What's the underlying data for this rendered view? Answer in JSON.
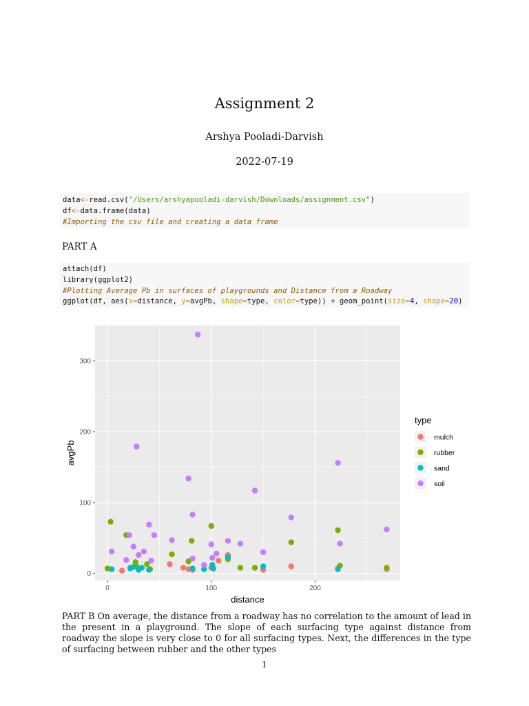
{
  "document": {
    "title": "Assignment 2",
    "author": "Arshya Pooladi-Darvish",
    "date": "2022-07-19",
    "part_a": "PART A",
    "paragraph": "PART B On average, the distance from a roadway has no correlation to the amount of lead in the present in a playground. The slope of each surfacing type against distance from roadway the slope is very close to 0 for all surfacing types. Next, the differences in the type of surfacing between rubber and the other types",
    "page_number": "1"
  },
  "code_block_1": [
    [
      {
        "t": "data",
        "c": ""
      },
      {
        "t": "<-",
        "c": "op"
      },
      {
        "t": "read.csv(",
        "c": ""
      },
      {
        "t": "\"/Users/arshyapooladi-darvish/Downloads/assignment.csv\"",
        "c": "str"
      },
      {
        "t": ")",
        "c": ""
      }
    ],
    [
      {
        "t": "df",
        "c": ""
      },
      {
        "t": "<-",
        "c": "op"
      },
      {
        "t": "data.frame(data)",
        "c": ""
      }
    ],
    [
      {
        "t": "#Importing the csv file and creating a data frame",
        "c": "cmt"
      }
    ]
  ],
  "code_block_2": [
    [
      {
        "t": "attach(df)",
        "c": ""
      }
    ],
    [
      {
        "t": "library(ggplot2)",
        "c": ""
      }
    ],
    [
      {
        "t": "#Plotting Average Pb in surfaces of playgrounds and Distance from a Roadway",
        "c": "cmt"
      }
    ],
    [
      {
        "t": "ggplot(df, aes(",
        "c": ""
      },
      {
        "t": "x=",
        "c": "arg"
      },
      {
        "t": "distance, ",
        "c": ""
      },
      {
        "t": "y=",
        "c": "arg"
      },
      {
        "t": "avgPb, ",
        "c": ""
      },
      {
        "t": "shape=",
        "c": "arg"
      },
      {
        "t": "type, ",
        "c": ""
      },
      {
        "t": "color=",
        "c": "arg"
      },
      {
        "t": "type)) + geom_point(",
        "c": ""
      },
      {
        "t": "size=",
        "c": "arg"
      },
      {
        "t": "4",
        "c": "num"
      },
      {
        "t": ", ",
        "c": ""
      },
      {
        "t": "shape=",
        "c": "arg"
      },
      {
        "t": "20",
        "c": "num"
      },
      {
        "t": ")",
        "c": ""
      }
    ]
  ],
  "chart_data": {
    "type": "scatter",
    "xlabel": "distance",
    "ylabel": "avgPb",
    "xlim": [
      -12,
      282
    ],
    "ylim": [
      -10,
      350
    ],
    "x_ticks": [
      0,
      100,
      200
    ],
    "y_ticks": [
      0,
      100,
      200,
      300
    ],
    "grid": true,
    "legend": {
      "title": "type",
      "placement": "right"
    },
    "series": [
      {
        "name": "mulch",
        "color": "#F8766D",
        "points": [
          [
            14,
            4
          ],
          [
            60,
            13
          ],
          [
            73,
            8
          ],
          [
            78,
            6
          ],
          [
            82,
            5
          ],
          [
            100,
            8
          ],
          [
            107,
            18
          ],
          [
            116,
            26
          ],
          [
            150,
            5
          ],
          [
            177,
            10
          ],
          [
            222,
            7
          ],
          [
            269,
            6
          ]
        ]
      },
      {
        "name": "rubber",
        "color": "#7CAE00",
        "points": [
          [
            0,
            7
          ],
          [
            3,
            73
          ],
          [
            18,
            54
          ],
          [
            22,
            8
          ],
          [
            27,
            16
          ],
          [
            28,
            10
          ],
          [
            38,
            13
          ],
          [
            41,
            6
          ],
          [
            62,
            27
          ],
          [
            78,
            17
          ],
          [
            81,
            46
          ],
          [
            100,
            67
          ],
          [
            116,
            20
          ],
          [
            128,
            8
          ],
          [
            142,
            8
          ],
          [
            177,
            44
          ],
          [
            222,
            61
          ],
          [
            224,
            11
          ],
          [
            269,
            8
          ]
        ]
      },
      {
        "name": "sand",
        "color": "#00BFC4",
        "points": [
          [
            4,
            6
          ],
          [
            22,
            7
          ],
          [
            25,
            9
          ],
          [
            30,
            5
          ],
          [
            33,
            8
          ],
          [
            40,
            5
          ],
          [
            82,
            7
          ],
          [
            93,
            6
          ],
          [
            101,
            12
          ],
          [
            102,
            7
          ],
          [
            116,
            23
          ],
          [
            150,
            10
          ],
          [
            222,
            6
          ]
        ]
      },
      {
        "name": "soil",
        "color": "#C77CFF",
        "points": [
          [
            4,
            31
          ],
          [
            18,
            19
          ],
          [
            21,
            54
          ],
          [
            25,
            38
          ],
          [
            30,
            26
          ],
          [
            35,
            31
          ],
          [
            40,
            69
          ],
          [
            42,
            18
          ],
          [
            45,
            54
          ],
          [
            62,
            47
          ],
          [
            78,
            134
          ],
          [
            82,
            83
          ],
          [
            82,
            21
          ],
          [
            87,
            337
          ],
          [
            93,
            12
          ],
          [
            100,
            41
          ],
          [
            101,
            22
          ],
          [
            105,
            28
          ],
          [
            116,
            46
          ],
          [
            128,
            42
          ],
          [
            142,
            117
          ],
          [
            150,
            30
          ],
          [
            177,
            79
          ],
          [
            222,
            156
          ],
          [
            224,
            42
          ],
          [
            269,
            62
          ],
          [
            28,
            179
          ]
        ]
      }
    ]
  }
}
